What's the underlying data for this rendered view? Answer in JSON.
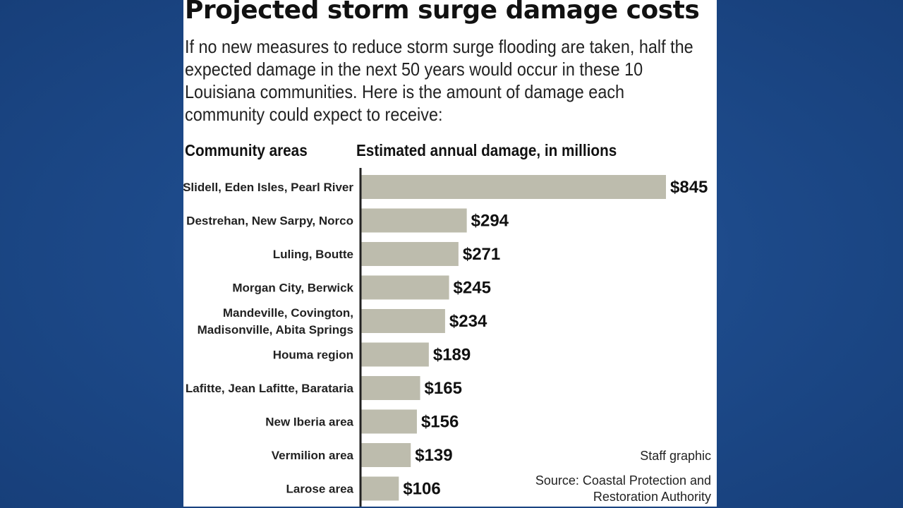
{
  "header": {
    "title": "Projected storm surge damage costs",
    "subtitle": "If no new measures to reduce storm surge flooding are taken, half the expected damage in the next 50 years would occur in these 10 Louisiana communities. Here is the amount of damage each community could expect to receive:"
  },
  "columns": {
    "left": "Community areas",
    "right": "Estimated annual damage, in millions"
  },
  "footer": {
    "credit": "Staff graphic",
    "source": "Source: Coastal Protection and Restoration Authority"
  },
  "colors": {
    "bar": "#bdbcad",
    "axis": "#222222",
    "background": "#1d4a8a"
  },
  "chart_data": {
    "type": "bar",
    "orientation": "horizontal",
    "title": "Projected storm surge damage costs",
    "xlabel": "Estimated annual damage, in millions",
    "ylabel": "Community areas",
    "categories": [
      [
        "Slidell, Eden Isles, Pearl River"
      ],
      [
        "Destrehan, New Sarpy, Norco"
      ],
      [
        "Luling, Boutte"
      ],
      [
        "Morgan City, Berwick"
      ],
      [
        "Mandeville, Covington,",
        "Madisonville, Abita Springs"
      ],
      [
        "Houma region"
      ],
      [
        "Lafitte, Jean Lafitte, Barataria"
      ],
      [
        "New Iberia area"
      ],
      [
        "Vermilion area"
      ],
      [
        "Larose area"
      ]
    ],
    "values": [
      845,
      294,
      271,
      245,
      234,
      189,
      165,
      156,
      139,
      106
    ],
    "value_labels": [
      "$845",
      "$294",
      "$271",
      "$245",
      "$234",
      "$189",
      "$165",
      "$156",
      "$139",
      "$106"
    ],
    "xlim": [
      0,
      845
    ],
    "grid": false,
    "legend": "none"
  }
}
